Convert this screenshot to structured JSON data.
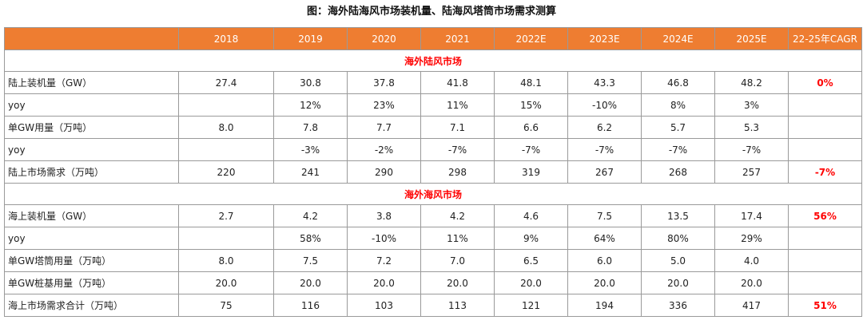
{
  "title": "图：海外陆海风市场装机量、陆海风塔筒市场需求测算",
  "header": [
    "",
    "2018",
    "2019",
    "2020",
    "2021",
    "2022E",
    "2023E",
    "2024E",
    "2025E",
    "22-25年CAGR"
  ],
  "sections": [
    {
      "title": "海外陆风市场",
      "rows": [
        {
          "label": "陆上装机量（GW）",
          "values": [
            "27.4",
            "30.8",
            "37.8",
            "41.8",
            "48.1",
            "43.3",
            "46.8",
            "48.2"
          ],
          "cagr": "0%"
        },
        {
          "label": "yoy",
          "values": [
            "",
            "12%",
            "23%",
            "11%",
            "15%",
            "-10%",
            "8%",
            "3%"
          ],
          "cagr": ""
        },
        {
          "label": "单GW用量（万吨）",
          "values": [
            "8.0",
            "7.8",
            "7.7",
            "7.1",
            "6.6",
            "6.2",
            "5.7",
            "5.3"
          ],
          "cagr": ""
        },
        {
          "label": "yoy",
          "values": [
            "",
            "-3%",
            "-2%",
            "-7%",
            "-7%",
            "-7%",
            "-7%",
            "-7%"
          ],
          "cagr": ""
        },
        {
          "label": "陆上市场需求（万吨）",
          "values": [
            "220",
            "241",
            "290",
            "298",
            "319",
            "267",
            "268",
            "257"
          ],
          "cagr": "-7%"
        }
      ]
    },
    {
      "title": "海外海风市场",
      "rows": [
        {
          "label": "海上装机量（GW）",
          "values": [
            "2.7",
            "4.2",
            "3.8",
            "4.2",
            "4.6",
            "7.5",
            "13.5",
            "17.4"
          ],
          "cagr": "56%"
        },
        {
          "label": "yoy",
          "values": [
            "",
            "58%",
            "-10%",
            "11%",
            "9%",
            "64%",
            "80%",
            "29%"
          ],
          "cagr": ""
        },
        {
          "label": "单GW塔筒用量（万吨）",
          "values": [
            "8.0",
            "7.5",
            "7.2",
            "7.0",
            "6.5",
            "6.0",
            "5.0",
            "4.0"
          ],
          "cagr": ""
        },
        {
          "label": "单GW桩基用量（万吨）",
          "values": [
            "20.0",
            "20.0",
            "20.0",
            "20.0",
            "20.0",
            "20.0",
            "20.0",
            "20.0"
          ],
          "cagr": ""
        },
        {
          "label": "海上市场需求合计（万吨）",
          "values": [
            "75",
            "116",
            "103",
            "113",
            "121",
            "194",
            "336",
            "417"
          ],
          "cagr": "51%"
        }
      ]
    }
  ],
  "colors": {
    "header_bg": "#ee7d31",
    "header_text": "#ffffff",
    "highlight": "#ff0000",
    "border": "#9a9a9a"
  }
}
